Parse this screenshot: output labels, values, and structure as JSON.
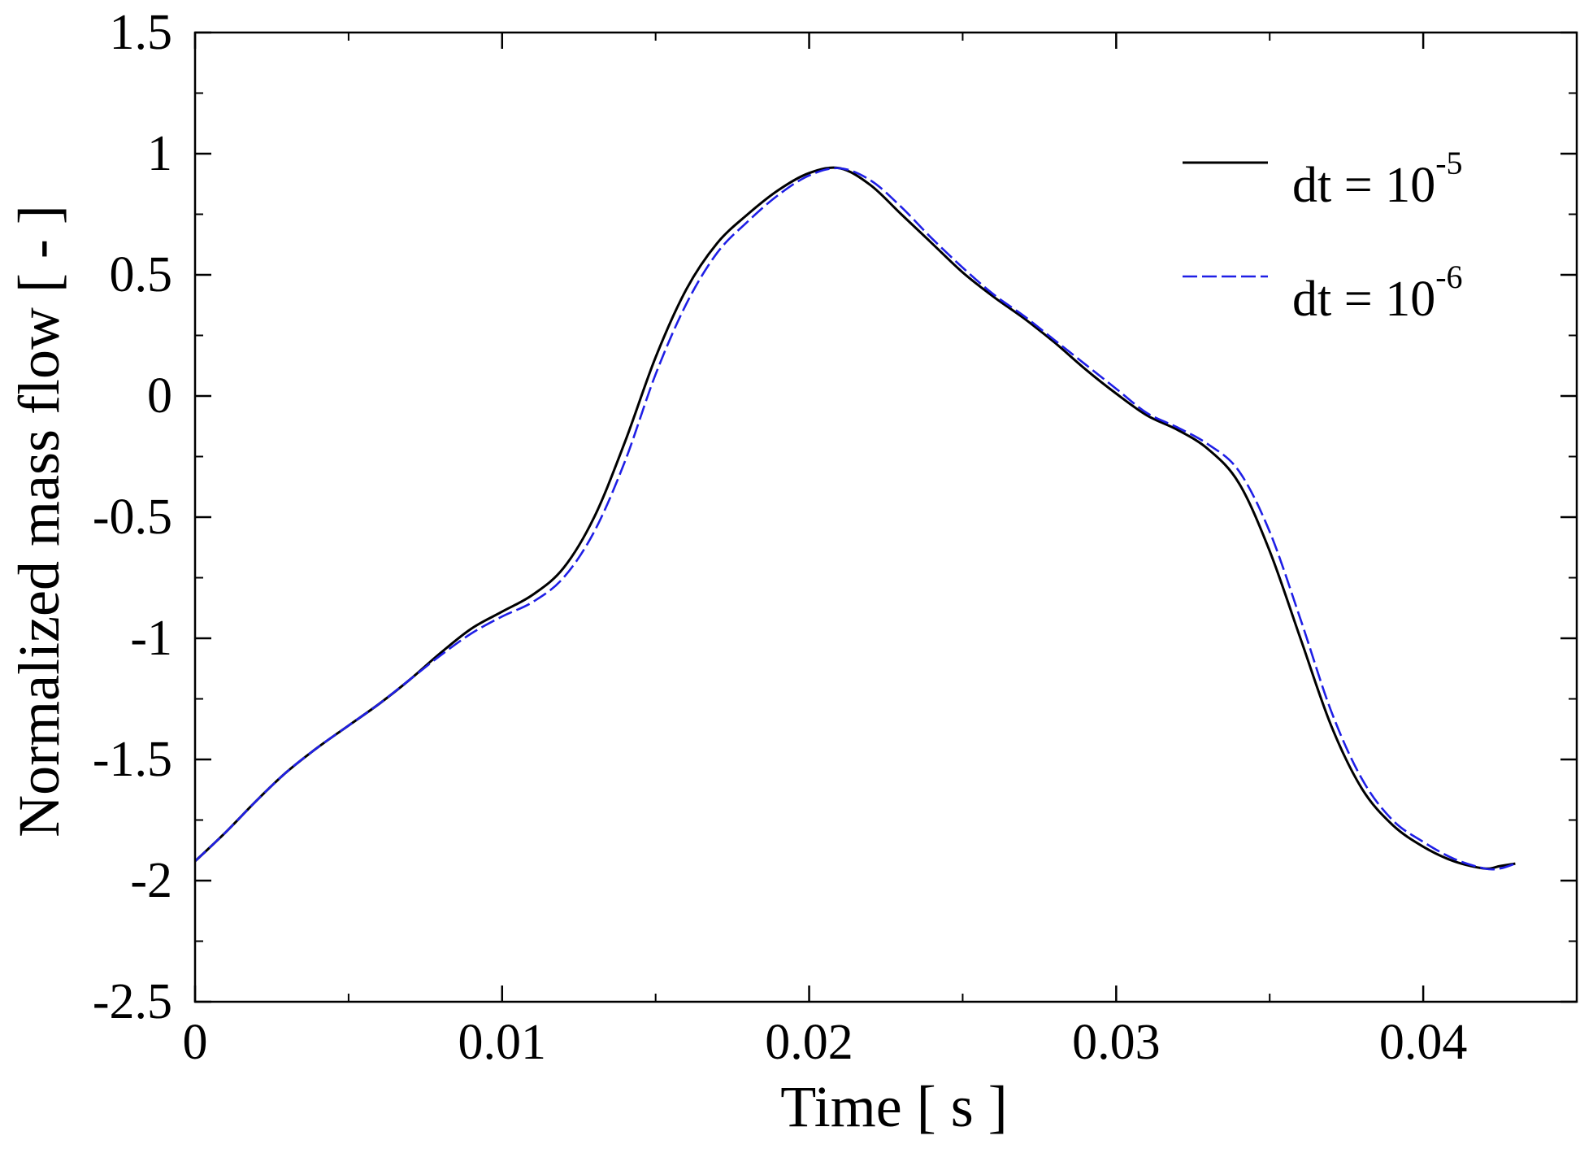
{
  "chart_data": {
    "type": "line",
    "title": "",
    "xlabel": "Time [ s ]",
    "ylabel": "Normalized mass flow [ - ]",
    "xlim": [
      0,
      0.045
    ],
    "ylim": [
      -2.5,
      1.5
    ],
    "xticks": [
      0,
      0.01,
      0.02,
      0.03,
      0.04
    ],
    "xtick_labels": [
      "0",
      "0.01",
      "0.02",
      "0.03",
      "0.04"
    ],
    "xminor": [
      0.005,
      0.015,
      0.025,
      0.035,
      0.045
    ],
    "yticks": [
      -2.5,
      -2,
      -1.5,
      -1,
      -0.5,
      0,
      0.5,
      1,
      1.5
    ],
    "ytick_labels": [
      "-2.5",
      "-2",
      "-1.5",
      "-1",
      "-0.5",
      "0",
      "0.5",
      "1",
      "1.5"
    ],
    "yminor": [
      -2.25,
      -1.75,
      -1.25,
      -0.75,
      -0.25,
      0.25,
      0.75,
      1.25
    ],
    "grid": false,
    "legend_position": "top-right",
    "colors": {
      "series1": "#000000",
      "series2": "#1f1fe6"
    },
    "series": [
      {
        "name": "dt = 10",
        "name_sup": "-5",
        "color": "#000000",
        "dash": "solid",
        "x": [
          0,
          0.001,
          0.002,
          0.003,
          0.004,
          0.005,
          0.006,
          0.007,
          0.008,
          0.009,
          0.01,
          0.011,
          0.012,
          0.013,
          0.014,
          0.015,
          0.016,
          0.017,
          0.018,
          0.019,
          0.02,
          0.021,
          0.022,
          0.023,
          0.024,
          0.025,
          0.026,
          0.027,
          0.028,
          0.029,
          0.03,
          0.031,
          0.032,
          0.033,
          0.034,
          0.035,
          0.036,
          0.037,
          0.038,
          0.039,
          0.04,
          0.041,
          0.042,
          0.0425,
          0.043
        ],
        "y": [
          -1.92,
          -1.8,
          -1.67,
          -1.55,
          -1.45,
          -1.36,
          -1.27,
          -1.17,
          -1.06,
          -0.96,
          -0.89,
          -0.82,
          -0.71,
          -0.5,
          -0.19,
          0.16,
          0.44,
          0.63,
          0.75,
          0.85,
          0.92,
          0.94,
          0.87,
          0.75,
          0.63,
          0.51,
          0.41,
          0.32,
          0.22,
          0.11,
          0.01,
          -0.08,
          -0.14,
          -0.22,
          -0.36,
          -0.64,
          -1.0,
          -1.36,
          -1.62,
          -1.77,
          -1.86,
          -1.92,
          -1.95,
          -1.94,
          -1.93
        ]
      },
      {
        "name": "dt = 10",
        "name_sup": "-6",
        "color": "#1f1fe6",
        "dash": "dashed",
        "x": [
          0,
          0.001,
          0.002,
          0.003,
          0.004,
          0.005,
          0.006,
          0.007,
          0.008,
          0.009,
          0.01,
          0.011,
          0.012,
          0.013,
          0.014,
          0.015,
          0.016,
          0.017,
          0.018,
          0.019,
          0.02,
          0.021,
          0.022,
          0.023,
          0.024,
          0.025,
          0.026,
          0.027,
          0.028,
          0.029,
          0.03,
          0.031,
          0.032,
          0.033,
          0.034,
          0.035,
          0.036,
          0.037,
          0.038,
          0.039,
          0.04,
          0.041,
          0.042,
          0.0425,
          0.043
        ],
        "y": [
          -1.92,
          -1.8,
          -1.67,
          -1.55,
          -1.45,
          -1.36,
          -1.27,
          -1.17,
          -1.07,
          -0.98,
          -0.91,
          -0.85,
          -0.75,
          -0.56,
          -0.27,
          0.09,
          0.38,
          0.59,
          0.72,
          0.83,
          0.91,
          0.94,
          0.89,
          0.78,
          0.65,
          0.53,
          0.42,
          0.33,
          0.23,
          0.13,
          0.03,
          -0.07,
          -0.13,
          -0.2,
          -0.31,
          -0.56,
          -0.92,
          -1.3,
          -1.58,
          -1.75,
          -1.84,
          -1.91,
          -1.95,
          -1.95,
          -1.93
        ]
      }
    ]
  }
}
